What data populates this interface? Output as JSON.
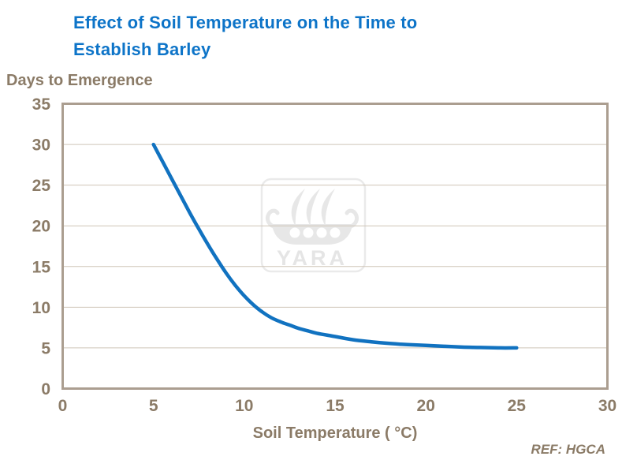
{
  "header": {
    "title_line1": "Effect of Soil Temperature on the Time to",
    "title_line2": "Establish Barley"
  },
  "axes": {
    "y_title": "Days to Emergence",
    "x_title": "Soil Temperature ( °C)"
  },
  "footer": {
    "ref": "REF: HGCA"
  },
  "watermark": {
    "text": "YARA",
    "icon": "viking-ship-icon"
  },
  "colors": {
    "title_blue": "#0d74c8",
    "line_blue": "#1172c0",
    "label_taupe": "#8b7b67",
    "frame_tan": "#ab9e90",
    "grid_tan": "#cfc5b7",
    "watermark_gray": "#e7e7e7",
    "background": "#ffffff"
  },
  "chart_data": {
    "type": "line",
    "title": "Effect of Soil Temperature on the Time to Establish Barley",
    "xlabel": "Soil Temperature ( °C)",
    "ylabel": "Days to Emergence",
    "xlim": [
      0,
      30
    ],
    "ylim": [
      0,
      35
    ],
    "xticks": [
      0,
      5,
      10,
      15,
      20,
      25,
      30
    ],
    "yticks": [
      0,
      5,
      10,
      15,
      20,
      25,
      30,
      35
    ],
    "grid": "horizontal",
    "legend": "none",
    "reference": "REF: HGCA",
    "series": [
      {
        "name": "Days to emergence",
        "color": "#1172c0",
        "x": [
          5,
          5.5,
          6,
          6.5,
          7,
          7.5,
          8,
          8.5,
          9,
          9.5,
          10,
          10.5,
          11,
          11.5,
          12,
          12.5,
          13,
          13.5,
          14,
          15,
          16,
          17,
          18,
          19,
          20,
          21,
          22,
          23,
          24,
          25
        ],
        "y": [
          30,
          27.9,
          25.8,
          23.7,
          21.6,
          19.6,
          17.7,
          15.9,
          14.2,
          12.7,
          11.4,
          10.3,
          9.4,
          8.7,
          8.2,
          7.8,
          7.4,
          7.1,
          6.8,
          6.4,
          6.0,
          5.75,
          5.55,
          5.4,
          5.3,
          5.2,
          5.1,
          5.05,
          5.0,
          5.0
        ]
      }
    ]
  }
}
